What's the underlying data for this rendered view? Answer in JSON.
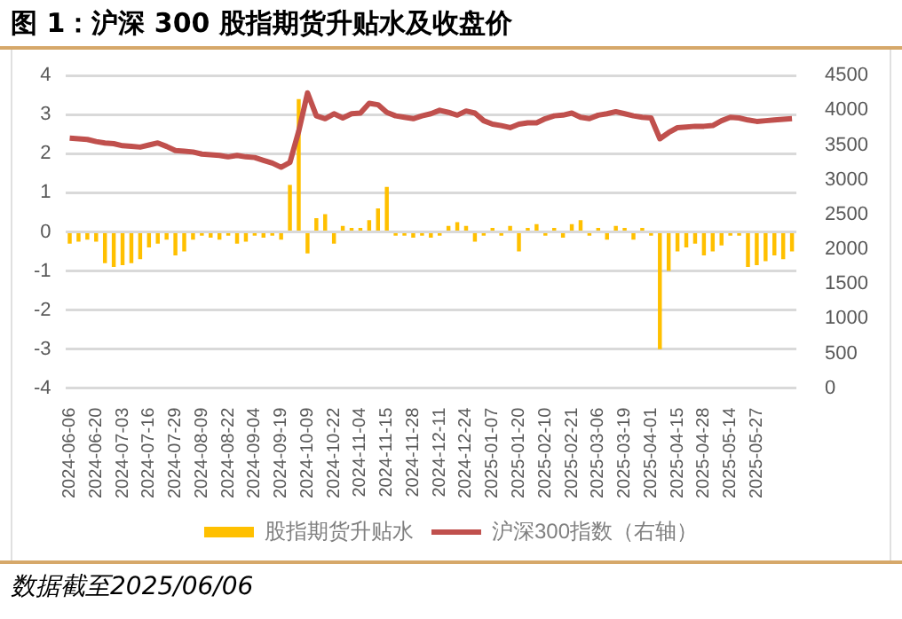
{
  "chart_data": {
    "type": "bar",
    "title": "图 1：沪深 300 股指期货升贴水及收盘价",
    "annotations": [
      "数据截至2025/06/06"
    ],
    "categories": [
      "2024-06-06",
      null,
      null,
      "2024-06-20",
      null,
      null,
      "2024-07-03",
      null,
      null,
      "2024-07-16",
      null,
      null,
      "2024-07-29",
      null,
      null,
      "2024-08-09",
      null,
      null,
      "2024-08-22",
      null,
      null,
      "2024-09-04",
      null,
      null,
      "2024-09-19",
      null,
      null,
      "2024-10-09",
      null,
      null,
      "2024-10-22",
      null,
      null,
      "2024-11-04",
      null,
      null,
      "2024-11-15",
      null,
      null,
      "2024-11-28",
      null,
      null,
      "2024-12-11",
      null,
      null,
      "2024-12-24",
      null,
      null,
      "2025-01-07",
      null,
      null,
      "2025-01-20",
      null,
      null,
      "2025-02-10",
      null,
      null,
      "2025-02-21",
      null,
      null,
      "2025-03-06",
      null,
      null,
      "2025-03-19",
      null,
      null,
      "2025-04-01",
      null,
      null,
      "2025-04-15",
      null,
      null,
      "2025-04-28",
      null,
      null,
      "2025-05-14",
      null,
      null,
      "2025-05-27",
      null,
      null,
      null,
      null
    ],
    "series": [
      {
        "name": "股指期货升贴水",
        "color": "#ffc000",
        "values": [
          -0.3,
          -0.25,
          -0.2,
          -0.25,
          -0.8,
          -0.9,
          -0.85,
          -0.8,
          -0.7,
          -0.4,
          -0.3,
          -0.2,
          -0.6,
          -0.5,
          -0.2,
          -0.1,
          -0.15,
          -0.2,
          -0.1,
          -0.3,
          -0.25,
          -0.1,
          -0.15,
          -0.1,
          -0.2,
          1.2,
          3.4,
          -0.55,
          0.35,
          0.45,
          -0.3,
          0.15,
          0.1,
          0.1,
          0.3,
          0.6,
          1.15,
          -0.1,
          -0.1,
          -0.15,
          -0.1,
          -0.15,
          -0.1,
          0.15,
          0.25,
          0.15,
          -0.25,
          -0.1,
          0.1,
          -0.1,
          0.15,
          -0.5,
          0.1,
          0.2,
          -0.1,
          0.1,
          -0.15,
          0.2,
          0.3,
          -0.1,
          0.1,
          -0.2,
          0.15,
          0.1,
          -0.2,
          0.1,
          -0.1,
          -3.0,
          -1.0,
          -0.5,
          -0.4,
          -0.3,
          -0.6,
          -0.5,
          -0.35,
          -0.1,
          -0.1,
          -0.9,
          -0.85,
          -0.75,
          -0.6,
          -0.7,
          -0.5
        ]
      },
      {
        "name": "沪深300指数（右轴）",
        "type": "line",
        "axis": "y2",
        "color": "#c0504d",
        "values": [
          3600,
          3590,
          3580,
          3550,
          3530,
          3520,
          3490,
          3480,
          3470,
          3500,
          3530,
          3480,
          3420,
          3410,
          3400,
          3370,
          3360,
          3350,
          3330,
          3350,
          3330,
          3320,
          3280,
          3240,
          3180,
          3250,
          3700,
          4250,
          3920,
          3880,
          3950,
          3890,
          3950,
          3960,
          4100,
          4080,
          3970,
          3920,
          3900,
          3880,
          3920,
          3950,
          4000,
          3970,
          3930,
          3990,
          3960,
          3850,
          3800,
          3780,
          3750,
          3800,
          3820,
          3820,
          3880,
          3920,
          3930,
          3960,
          3900,
          3880,
          3930,
          3950,
          3980,
          3950,
          3920,
          3900,
          3890,
          3590,
          3680,
          3750,
          3760,
          3770,
          3770,
          3780,
          3850,
          3900,
          3890,
          3860,
          3840,
          3850,
          3860,
          3870,
          3880
        ]
      }
    ],
    "ylim": [
      -4,
      4
    ],
    "yticks": [
      -4,
      -3,
      -2,
      -1,
      0,
      1,
      2,
      3,
      4
    ],
    "y2lim": [
      0,
      4500
    ],
    "y2ticks": [
      0,
      500,
      1000,
      1500,
      2000,
      2500,
      3000,
      3500,
      4000,
      4500
    ],
    "grid": "y",
    "legend": "bottom",
    "marker": "none",
    "line_style": "solid"
  }
}
